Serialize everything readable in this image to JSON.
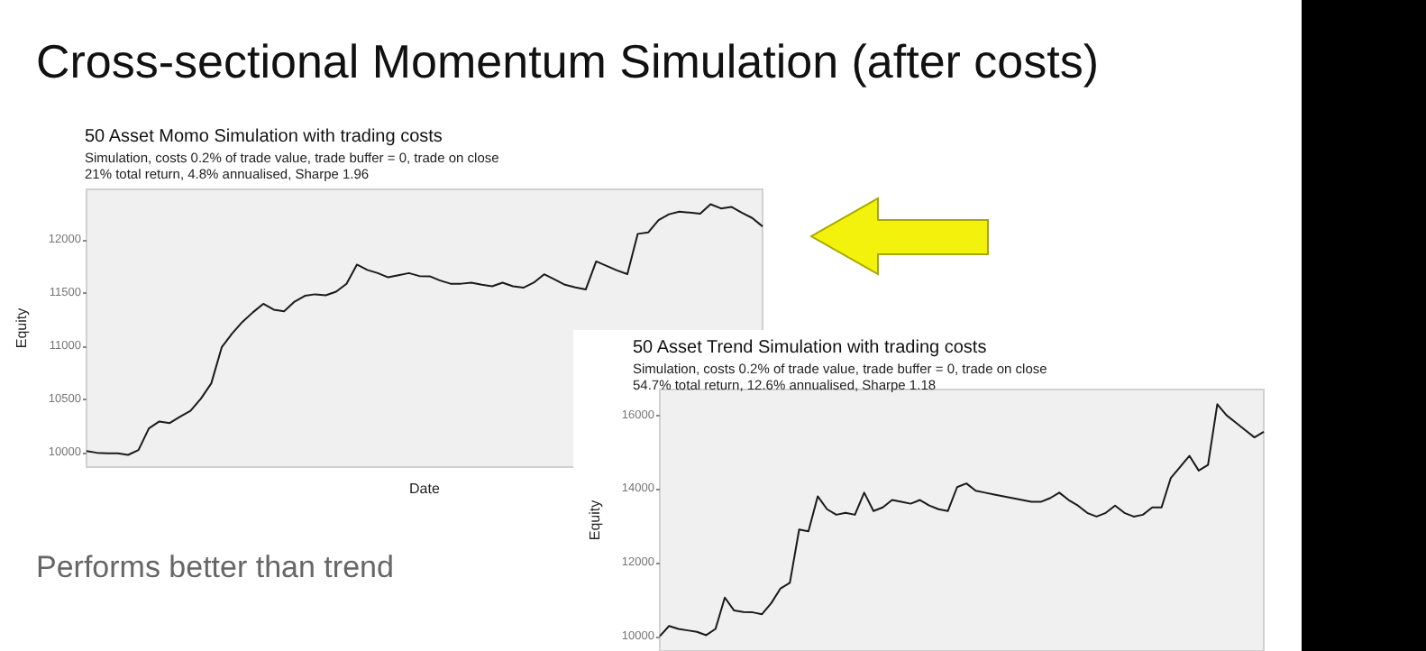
{
  "chart_data": [
    {
      "type": "other",
      "title": "Cross-sectional Momentum Simulation (after costs)",
      "annotations": [
        "Performs better than trend"
      ]
    },
    {
      "type": "line",
      "title": "50 Asset Momo Simulation with trading costs",
      "subtitle": "Simulation, costs 0.2% of trade value, trade buffer = 0, trade on close\n21% total return, 4.8% annualised, Sharpe 1.96",
      "xlabel": "Date",
      "ylabel": "Equity",
      "color": "#1a1a1a",
      "ylim": [
        9860,
        12480
      ],
      "yticks": [
        10000,
        10500,
        11000,
        11500,
        12000
      ],
      "categories": [
        null,
        null,
        null,
        null,
        null,
        null,
        null,
        null,
        null,
        null,
        null,
        null,
        null,
        null,
        null,
        null,
        null,
        null,
        null,
        null,
        null,
        null,
        null,
        null,
        null,
        null,
        null,
        null,
        null,
        null,
        null,
        null,
        null,
        null,
        null,
        null,
        null,
        null,
        null,
        null,
        null,
        null,
        null,
        null,
        null,
        null,
        null,
        null,
        null,
        null,
        null,
        null,
        null,
        null,
        null,
        null,
        null,
        null,
        null,
        null,
        null,
        null,
        null,
        null,
        null,
        null
      ],
      "values": [
        10011,
        9995,
        9989,
        9989,
        9975,
        10020,
        10225,
        10290,
        10275,
        10335,
        10390,
        10505,
        10650,
        10990,
        11120,
        11230,
        11320,
        11400,
        11345,
        11330,
        11420,
        11476,
        11490,
        11480,
        11515,
        11589,
        11770,
        11720,
        11690,
        11650,
        11670,
        11690,
        11662,
        11660,
        11620,
        11590,
        11590,
        11600,
        11580,
        11565,
        11600,
        11566,
        11552,
        11600,
        11679,
        11630,
        11580,
        11555,
        11535,
        11800,
        11758,
        11715,
        11680,
        12060,
        12073,
        12190,
        12245,
        12270,
        12260,
        12250,
        12340,
        12300,
        12315,
        12260,
        12210,
        12130
      ]
    },
    {
      "type": "line",
      "title": "50 Asset Trend Simulation with trading costs",
      "subtitle": "Simulation, costs 0.2% of trade value, trade buffer = 0, trade on close\n54.7% total return, 12.6% annualised, Sharpe 1.18",
      "ylabel": "Equity",
      "color": "#1a1a1a",
      "ylim": [
        9600,
        16700
      ],
      "yticks": [
        10000,
        12000,
        14000,
        16000
      ],
      "categories": [
        null,
        null,
        null,
        null,
        null,
        null,
        null,
        null,
        null,
        null,
        null,
        null,
        null,
        null,
        null,
        null,
        null,
        null,
        null,
        null,
        null,
        null,
        null,
        null,
        null,
        null,
        null,
        null,
        null,
        null,
        null,
        null,
        null,
        null,
        null,
        null,
        null,
        null,
        null,
        null,
        null,
        null,
        null,
        null,
        null,
        null,
        null,
        null,
        null,
        null,
        null,
        null,
        null,
        null,
        null,
        null,
        null,
        null,
        null,
        null,
        null,
        null,
        null,
        null,
        null,
        null
      ],
      "values": [
        10000,
        10280,
        10200,
        10160,
        10120,
        10030,
        10200,
        11050,
        10700,
        10660,
        10650,
        10600,
        10900,
        11300,
        11450,
        12900,
        12850,
        13800,
        13450,
        13300,
        13350,
        13300,
        13900,
        13400,
        13500,
        13700,
        13650,
        13600,
        13700,
        13550,
        13450,
        13400,
        14050,
        14150,
        13950,
        13900,
        13850,
        13800,
        13750,
        13700,
        13650,
        13650,
        13750,
        13900,
        13700,
        13550,
        13350,
        13250,
        13350,
        13550,
        13350,
        13250,
        13300,
        13500,
        13500,
        14300,
        14600,
        14900,
        14500,
        14650,
        16300,
        16000,
        15800,
        15600,
        15400,
        15550
      ]
    }
  ]
}
